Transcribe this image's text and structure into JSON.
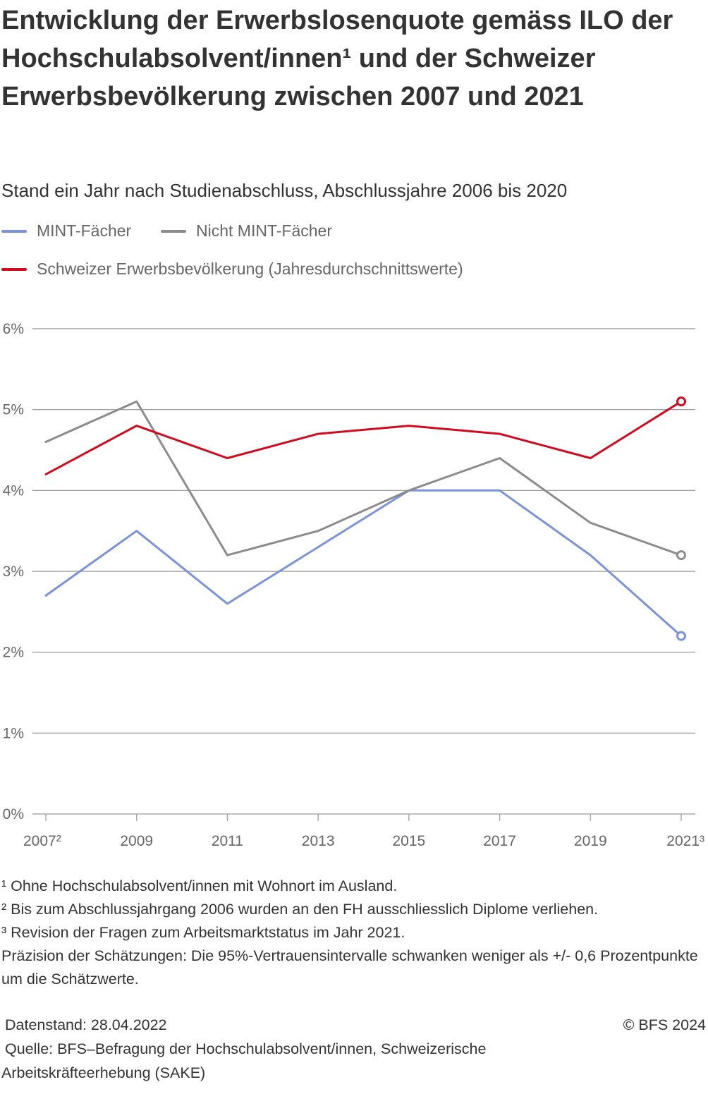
{
  "title": "Entwicklung der Erwerbslosenquote gemäss ILO der Hochschulabsolvent/innen¹ und der Schweizer Erwerbsbevölkerung zwischen 2007 und 2021",
  "subtitle": "Stand ein Jahr nach Studienabschluss, Abschlussjahre 2006 bis 2020",
  "legend": [
    {
      "label": "MINT-Fächer",
      "color": "#7b93d9"
    },
    {
      "label": "Nicht MINT-Fächer",
      "color": "#8c8c8c"
    },
    {
      "label": "Schweizer Erwerbsbevölkerung (Jahresdurchschnittswerte)",
      "color": "#d10a1e"
    }
  ],
  "chart_data": {
    "type": "line",
    "title": "Entwicklung der Erwerbslosenquote gemäss ILO der Hochschulabsolvent/innen¹ und der Schweizer Erwerbsbevölkerung zwischen 2007 und 2021",
    "subtitle": "Stand ein Jahr nach Studienabschluss, Abschlussjahre 2006 bis 2020",
    "x": [
      2007,
      2009,
      2011,
      2013,
      2015,
      2017,
      2019,
      2021
    ],
    "x_tick_labels": [
      "2007²",
      "2009",
      "2011",
      "2013",
      "2015",
      "2017",
      "2019",
      "2021³"
    ],
    "y_tick_labels": [
      "0%",
      "1%",
      "2%",
      "3%",
      "4%",
      "5%",
      "6%"
    ],
    "ylim": [
      0,
      6
    ],
    "grid": true,
    "legend_position": "top",
    "series": [
      {
        "name": "MINT-Fächer",
        "color": "#7b93d9",
        "values": [
          2.7,
          3.5,
          2.6,
          3.3,
          4.0,
          4.0,
          3.2,
          2.2
        ]
      },
      {
        "name": "Nicht MINT-Fächer",
        "color": "#8c8c8c",
        "values": [
          4.6,
          5.1,
          3.2,
          3.5,
          4.0,
          4.4,
          3.6,
          3.2
        ]
      },
      {
        "name": "Schweizer Erwerbsbevölkerung (Jahresdurchschnittswerte)",
        "color": "#d10a1e",
        "values": [
          4.2,
          4.8,
          4.4,
          4.7,
          4.8,
          4.7,
          4.4,
          5.1
        ]
      }
    ]
  },
  "footnotes": [
    "¹ Ohne Hochschulabsolvent/innen mit Wohnort im Ausland.",
    "² Bis zum Abschlussjahrgang 2006 wurden an den FH ausschliesslich Diplome verliehen.",
    "³ Revision der Fragen zum Arbeitsmarktstatus im Jahr 2021.",
    "Präzision der Schätzungen: Die 95%-Vertrauensintervalle schwanken weniger als +/- 0,6 Prozentpunkte um die Schätzwerte."
  ],
  "datenstand": "Datenstand: 28.04.2022",
  "copyright": "© BFS 2024",
  "quelle": "Quelle: BFS–Befragung der Hochschulabsolvent/innen, Schweizerische Arbeitskräfteerhebung (SAKE)"
}
